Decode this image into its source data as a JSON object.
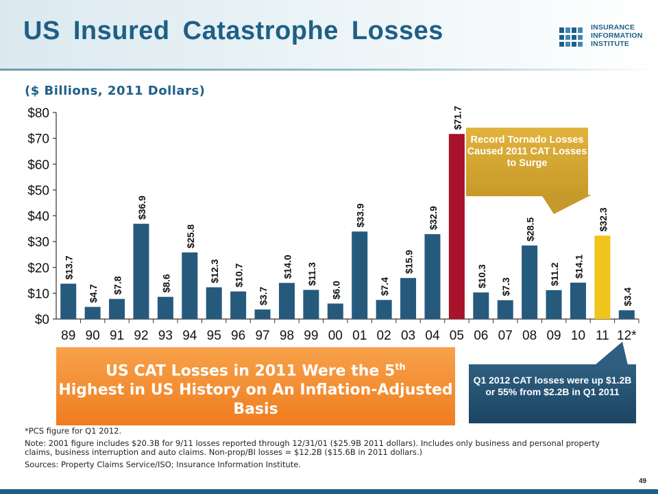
{
  "slide": {
    "title": "US Insured Catastrophe Losses",
    "subtitle": "($ Billions, 2011 Dollars)",
    "page_number": "49"
  },
  "logo": {
    "lines": [
      "INSURANCE",
      "INFORMATION",
      "INSTITUTE"
    ],
    "icon": "iii-logo-icon"
  },
  "chart_data": {
    "type": "bar",
    "categories": [
      "89",
      "90",
      "91",
      "92",
      "93",
      "94",
      "95",
      "96",
      "97",
      "98",
      "99",
      "00",
      "01",
      "02",
      "03",
      "04",
      "05",
      "06",
      "07",
      "08",
      "09",
      "10",
      "11",
      "12*"
    ],
    "values": [
      13.7,
      4.7,
      7.8,
      36.9,
      8.6,
      25.8,
      12.3,
      10.7,
      3.7,
      14.0,
      11.3,
      6.0,
      33.9,
      7.4,
      15.9,
      32.9,
      71.7,
      10.3,
      7.3,
      28.5,
      11.2,
      14.1,
      32.3,
      3.4
    ],
    "value_labels": [
      "$13.7",
      "$4.7",
      "$7.8",
      "$36.9",
      "$8.6",
      "$25.8",
      "$12.3",
      "$10.7",
      "$3.7",
      "$14.0",
      "$11.3",
      "$6.0",
      "$33.9",
      "$7.4",
      "$15.9",
      "$32.9",
      "$71.7",
      "$10.3",
      "$7.3",
      "$28.5",
      "$11.2",
      "$14.1",
      "$32.3",
      "$3.4"
    ],
    "ylim": [
      0,
      80
    ],
    "y_ticks": [
      0,
      10,
      20,
      30,
      40,
      50,
      60,
      70,
      80
    ],
    "y_tick_labels": [
      "$0",
      "$10",
      "$20",
      "$30",
      "$40",
      "$50",
      "$60",
      "$70",
      "$80"
    ],
    "grid": false,
    "colors": {
      "default": "#265a7d",
      "highlight_05": "#a8122a",
      "highlight_11": "#f0c41b"
    },
    "highlight": {
      "05": "highlight_05",
      "11": "highlight_11"
    }
  },
  "callouts": {
    "tornado": "Record Tornado Losses Caused 2011 CAT Losses to Surge",
    "banner_line1": "US CAT Losses in 2011 Were the 5",
    "banner_sup": "th",
    "banner_line2": "Highest in US History on An Inflation-Adjusted Basis",
    "q1": "Q1 2012 CAT losses were up $1.2B or 55% from $2.2B in Q1 2011"
  },
  "footnotes": {
    "pcs": "*PCS figure for Q1 2012.",
    "note": "Note: 2001 figure includes $20.3B for 9/11 losses reported through 12/31/01 ($25.9B 2011 dollars). Includes only business and personal property claims, business interruption and auto claims. Non-prop/BI losses = $12.2B ($15.6B in 2011 dollars.)",
    "sources": "Sources: Property Claims Service/ISO; Insurance Information Institute."
  }
}
